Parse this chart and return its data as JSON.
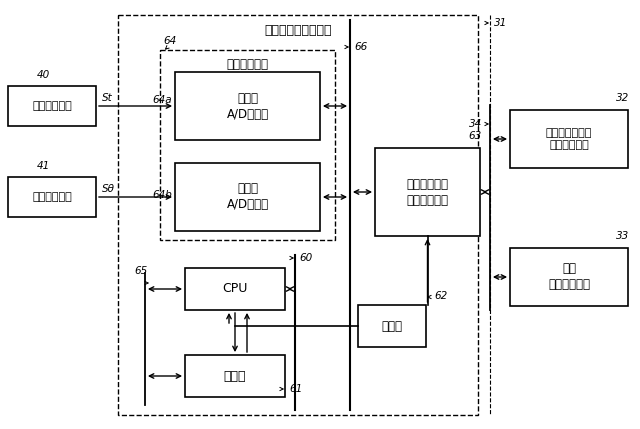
{
  "background": "#ffffff",
  "title": "センサコントローラ",
  "label_31": "31",
  "label_32": "32",
  "label_33": "33",
  "label_34": "34",
  "label_40": "40",
  "label_41": "41",
  "label_60": "60",
  "label_61": "61",
  "label_62": "62",
  "label_63": "63",
  "label_64": "64",
  "label_64a": "64a",
  "label_64b": "64b",
  "label_65": "65",
  "label_66": "66",
  "box_torque": "トルクセンサ",
  "box_steer": "操舵角センサ",
  "box_ad1": "第１の\nA/D変換部",
  "box_ad2": "第２の\nA/D変換部",
  "box_periph": "周辺デバイス",
  "box_net": "ネットワーク\nコントローラ",
  "box_cpu": "CPU",
  "box_mem": "メモリ",
  "box_monitor": "監視部",
  "box_act": "アクチュエータ\nコントローラ",
  "box_cmd": "指令\nコントローラ",
  "St_label": "St",
  "Stheta_label": "Sθ"
}
